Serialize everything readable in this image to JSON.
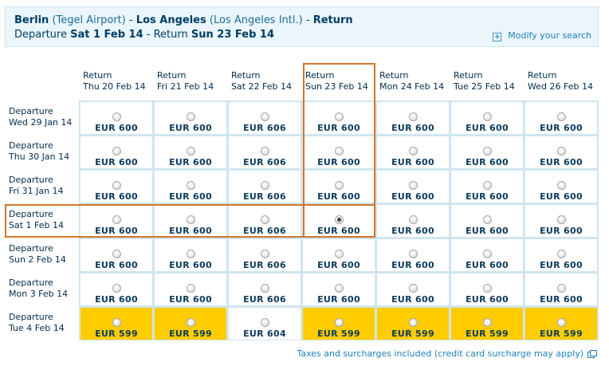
{
  "header": {
    "origin": "Berlin",
    "origin_airport": "(Tegel Airport)",
    "sep1": " - ",
    "destination": "Los Angeles",
    "destination_airport": "(Los Angeles Intl.)",
    "sep2": " - ",
    "trip_type": "Return",
    "departure_label": "Departure",
    "departure_date": "Sat 1 Feb 14",
    "return_sep": " - Return ",
    "return_date": "Sun 23 Feb 14",
    "modify_label": "Modify your search"
  },
  "columns": [
    {
      "label": "Return",
      "date": "Thu 20 Feb 14"
    },
    {
      "label": "Return",
      "date": "Fri 21 Feb 14"
    },
    {
      "label": "Return",
      "date": "Sat 22 Feb 14"
    },
    {
      "label": "Return",
      "date": "Sun 23 Feb 14"
    },
    {
      "label": "Return",
      "date": "Mon 24 Feb 14"
    },
    {
      "label": "Return",
      "date": "Tue 25 Feb 14"
    },
    {
      "label": "Return",
      "date": "Wed 26 Feb 14"
    }
  ],
  "rows": [
    {
      "label": "Departure",
      "date": "Wed 29 Jan 14",
      "prices": [
        "EUR 600",
        "EUR 600",
        "EUR 606",
        "EUR 600",
        "EUR 600",
        "EUR 600",
        "EUR 600"
      ]
    },
    {
      "label": "Departure",
      "date": "Thu 30 Jan 14",
      "prices": [
        "EUR 600",
        "EUR 600",
        "EUR 606",
        "EUR 600",
        "EUR 600",
        "EUR 600",
        "EUR 600"
      ]
    },
    {
      "label": "Departure",
      "date": "Fri 31 Jan 14",
      "prices": [
        "EUR 600",
        "EUR 600",
        "EUR 606",
        "EUR 600",
        "EUR 600",
        "EUR 600",
        "EUR 600"
      ]
    },
    {
      "label": "Departure",
      "date": "Sat 1 Feb 14",
      "prices": [
        "EUR 600",
        "EUR 600",
        "EUR 606",
        "EUR 600",
        "EUR 600",
        "EUR 600",
        "EUR 600"
      ]
    },
    {
      "label": "Departure",
      "date": "Sun 2 Feb 14",
      "prices": [
        "EUR 600",
        "EUR 600",
        "EUR 606",
        "EUR 600",
        "EUR 600",
        "EUR 600",
        "EUR 600"
      ]
    },
    {
      "label": "Departure",
      "date": "Mon 3 Feb 14",
      "prices": [
        "EUR 600",
        "EUR 600",
        "EUR 606",
        "EUR 600",
        "EUR 600",
        "EUR 600",
        "EUR 600"
      ]
    },
    {
      "label": "Departure",
      "date": "Tue 4 Feb 14",
      "prices": [
        "EUR 599",
        "EUR 599",
        "EUR 604",
        "EUR 599",
        "EUR 599",
        "EUR 599",
        "EUR 599"
      ]
    }
  ],
  "cheapest_cells": [
    [
      6,
      0
    ],
    [
      6,
      1
    ],
    [
      6,
      3
    ],
    [
      6,
      4
    ],
    [
      6,
      5
    ],
    [
      6,
      6
    ]
  ],
  "selected": {
    "row": 3,
    "col": 3
  },
  "colors": {
    "cheapest_highlight": "#ffcc00",
    "selection_border": "#d1762a",
    "link": "#1d7fb9"
  },
  "footnote": "Taxes and surcharges included (credit card surcharge may apply)"
}
